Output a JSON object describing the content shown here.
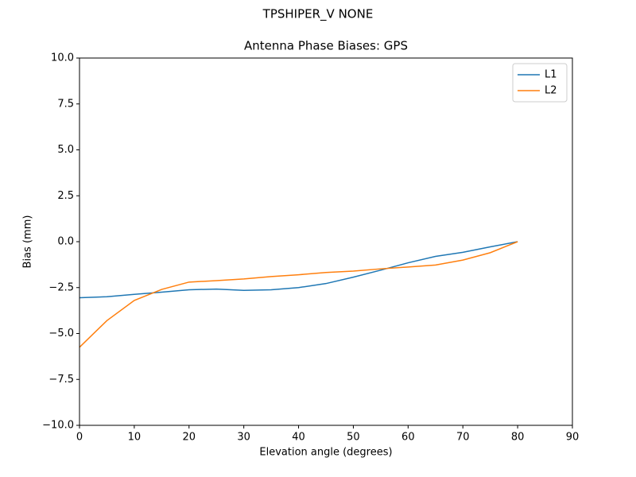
{
  "chart_data": {
    "type": "line",
    "suptitle": "TPSHIPER_V      NONE",
    "title": "Antenna Phase Biases: GPS",
    "x_label": "Elevation angle (degrees)",
    "y_label": "Bias (mm)",
    "x": [
      0,
      5,
      10,
      15,
      20,
      25,
      30,
      35,
      40,
      45,
      50,
      55,
      60,
      65,
      70,
      75,
      80
    ],
    "series": [
      {
        "name": "L1",
        "color": "#1f77b4",
        "values": [
          -3.05,
          -3.0,
          -2.87,
          -2.75,
          -2.62,
          -2.58,
          -2.65,
          -2.62,
          -2.5,
          -2.28,
          -1.93,
          -1.55,
          -1.15,
          -0.8,
          -0.58,
          -0.28,
          0
        ]
      },
      {
        "name": "L2",
        "color": "#ff7f0e",
        "values": [
          -5.75,
          -4.3,
          -3.2,
          -2.6,
          -2.2,
          -2.12,
          -2.03,
          -1.9,
          -1.8,
          -1.68,
          -1.6,
          -1.48,
          -1.38,
          -1.27,
          -1.0,
          -0.6,
          0
        ]
      }
    ],
    "xlim": [
      0,
      90
    ],
    "xticks": [
      0,
      10,
      20,
      30,
      40,
      50,
      60,
      70,
      80,
      90
    ],
    "ylim": [
      -10,
      10
    ],
    "yticks": [
      {
        "value": -10,
        "label": "−10.0"
      },
      {
        "value": -7.5,
        "label": "−7.5"
      },
      {
        "value": -5,
        "label": "−5.0"
      },
      {
        "value": -2.5,
        "label": "−2.5"
      },
      {
        "value": 0,
        "label": "0.0"
      },
      {
        "value": 2.5,
        "label": "2.5"
      },
      {
        "value": 5,
        "label": "5.0"
      },
      {
        "value": 7.5,
        "label": "7.5"
      },
      {
        "value": 10,
        "label": "10.0"
      }
    ],
    "legend": "upper right"
  }
}
